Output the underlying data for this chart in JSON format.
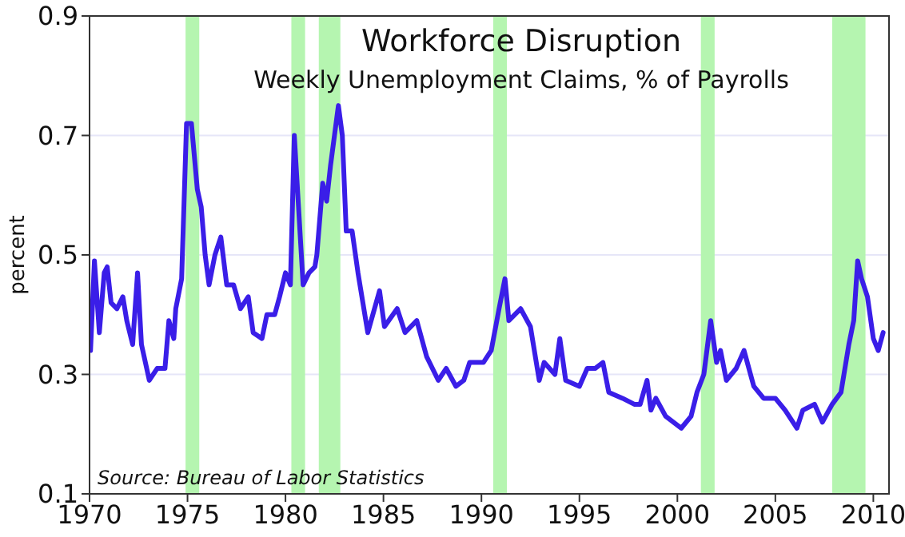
{
  "chart_data": {
    "type": "line",
    "title": "Workforce Disruption",
    "subtitle": "Weekly Unemployment Claims, % of Payrolls",
    "ylabel": "percent",
    "annotations": [
      "Source: Bureau of Labor Statistics"
    ],
    "xlim": [
      1970,
      2010.8
    ],
    "xticks": [
      1970,
      1975,
      1980,
      1985,
      1990,
      1995,
      2000,
      2005,
      2010
    ],
    "ylim": [
      0.1,
      0.9
    ],
    "yticks": [
      0.1,
      0.3,
      0.5,
      0.7,
      0.9
    ],
    "grid": "y",
    "marker": "none",
    "line_style": "solid",
    "bands": [
      {
        "axis": "x",
        "from": 1974.9,
        "to": 1975.6,
        "color": "#b5f5b0"
      },
      {
        "axis": "x",
        "from": 1980.3,
        "to": 1981.0,
        "color": "#b5f5b0"
      },
      {
        "axis": "x",
        "from": 1981.7,
        "to": 1982.8,
        "color": "#b5f5b0"
      },
      {
        "axis": "x",
        "from": 1990.6,
        "to": 1991.3,
        "color": "#b5f5b0"
      },
      {
        "axis": "x",
        "from": 2001.2,
        "to": 2001.9,
        "color": "#b5f5b0"
      },
      {
        "axis": "x",
        "from": 2007.9,
        "to": 2009.6,
        "color": "#b5f5b0"
      }
    ],
    "series": [
      {
        "color": "#3a1ee8",
        "x": [
          1970.05,
          1970.25,
          1970.5,
          1970.75,
          1970.9,
          1971.1,
          1971.4,
          1971.7,
          1971.9,
          1972.2,
          1972.45,
          1972.65,
          1973.05,
          1973.45,
          1973.85,
          1974.05,
          1974.3,
          1974.4,
          1974.7,
          1974.95,
          1975.2,
          1975.5,
          1975.7,
          1975.9,
          1976.1,
          1976.4,
          1976.7,
          1977.0,
          1977.35,
          1977.7,
          1978.1,
          1978.35,
          1978.8,
          1979.05,
          1979.45,
          1979.7,
          1980.0,
          1980.25,
          1980.45,
          1980.9,
          1981.2,
          1981.5,
          1981.6,
          1981.9,
          1982.1,
          1982.3,
          1982.7,
          1982.9,
          1983.1,
          1983.4,
          1983.7,
          1984.2,
          1984.8,
          1985.05,
          1985.7,
          1986.1,
          1986.7,
          1987.2,
          1987.8,
          1988.2,
          1988.7,
          1989.1,
          1989.4,
          1990.1,
          1990.5,
          1990.9,
          1991.2,
          1991.4,
          1992.0,
          1992.5,
          1992.95,
          1993.2,
          1993.75,
          1994.0,
          1994.3,
          1995.0,
          1995.4,
          1995.8,
          1996.2,
          1996.5,
          1997.2,
          1997.8,
          1998.1,
          1998.45,
          1998.65,
          1998.9,
          1999.4,
          2000.2,
          2000.7,
          2001.0,
          2001.35,
          2001.7,
          2002.0,
          2002.2,
          2002.5,
          2003.0,
          2003.4,
          2003.9,
          2004.4,
          2005.0,
          2005.5,
          2006.1,
          2006.4,
          2007.0,
          2007.4,
          2007.9,
          2008.35,
          2008.75,
          2009.0,
          2009.2,
          2009.4,
          2009.7,
          2010.0,
          2010.25,
          2010.5
        ],
        "values": [
          0.34,
          0.49,
          0.37,
          0.47,
          0.48,
          0.42,
          0.41,
          0.43,
          0.39,
          0.35,
          0.47,
          0.35,
          0.29,
          0.31,
          0.31,
          0.39,
          0.36,
          0.41,
          0.46,
          0.72,
          0.72,
          0.61,
          0.58,
          0.5,
          0.45,
          0.5,
          0.53,
          0.45,
          0.45,
          0.41,
          0.43,
          0.37,
          0.36,
          0.4,
          0.4,
          0.43,
          0.47,
          0.45,
          0.7,
          0.45,
          0.47,
          0.48,
          0.5,
          0.62,
          0.59,
          0.65,
          0.75,
          0.7,
          0.54,
          0.54,
          0.47,
          0.37,
          0.44,
          0.38,
          0.41,
          0.37,
          0.39,
          0.33,
          0.29,
          0.31,
          0.28,
          0.29,
          0.32,
          0.32,
          0.34,
          0.41,
          0.46,
          0.39,
          0.41,
          0.38,
          0.29,
          0.32,
          0.3,
          0.36,
          0.29,
          0.28,
          0.31,
          0.31,
          0.32,
          0.27,
          0.26,
          0.25,
          0.25,
          0.29,
          0.24,
          0.26,
          0.23,
          0.21,
          0.23,
          0.27,
          0.3,
          0.39,
          0.32,
          0.34,
          0.29,
          0.31,
          0.34,
          0.28,
          0.26,
          0.26,
          0.24,
          0.21,
          0.24,
          0.25,
          0.22,
          0.25,
          0.27,
          0.35,
          0.39,
          0.49,
          0.46,
          0.43,
          0.36,
          0.34,
          0.37
        ]
      }
    ]
  }
}
